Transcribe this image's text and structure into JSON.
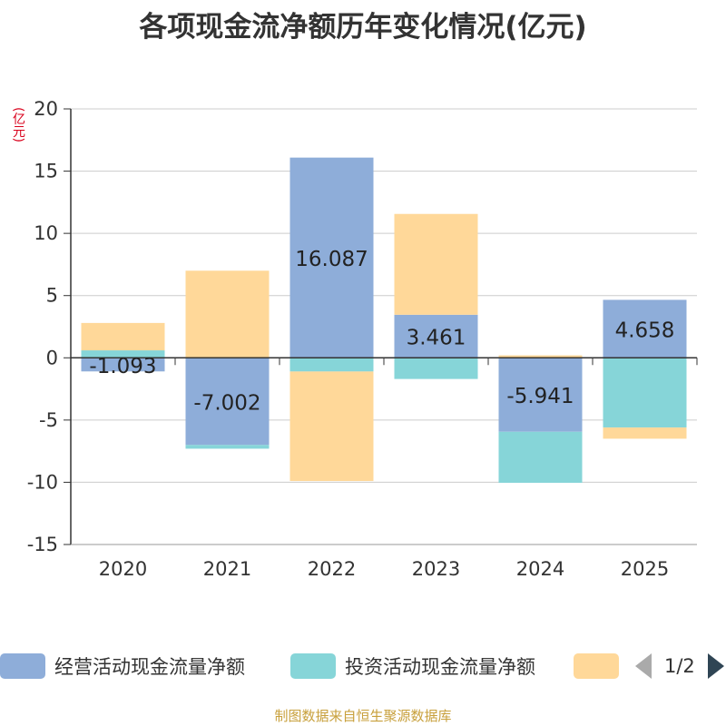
{
  "title": "各项现金流净额历年变化情况(亿元)",
  "unit_label": "(亿元)",
  "source": "制图数据来自恒生聚源数据库",
  "legend_page": "1/2",
  "chart_data": {
    "type": "bar",
    "stacked": true,
    "title": "各项现金流净额历年变化情况(亿元)",
    "ylabel": "(亿元)",
    "ylim": [
      -15,
      20
    ],
    "yticks": [
      20,
      15,
      10,
      5,
      0,
      -5,
      -10,
      -15
    ],
    "categories": [
      "2020",
      "2021",
      "2022",
      "2023",
      "2024",
      "2025"
    ],
    "series": [
      {
        "name": "经营活动现金流量净额",
        "color": "#8eadd9",
        "values": [
          -1.093,
          -7.002,
          16.087,
          3.461,
          -5.941,
          4.658
        ],
        "labels": [
          "-1.093",
          "-7.002",
          "16.087",
          "3.461",
          "-5.941",
          "4.658"
        ]
      },
      {
        "name": "投资活动现金流量净额",
        "color": "#86d5d8",
        "values": [
          0.6,
          -0.3,
          -1.1,
          -1.7,
          -4.1,
          -5.6
        ]
      },
      {
        "name": "",
        "color": "#ffd899",
        "values": [
          2.2,
          7.0,
          -8.8,
          8.1,
          0.2,
          -0.9
        ]
      }
    ]
  }
}
